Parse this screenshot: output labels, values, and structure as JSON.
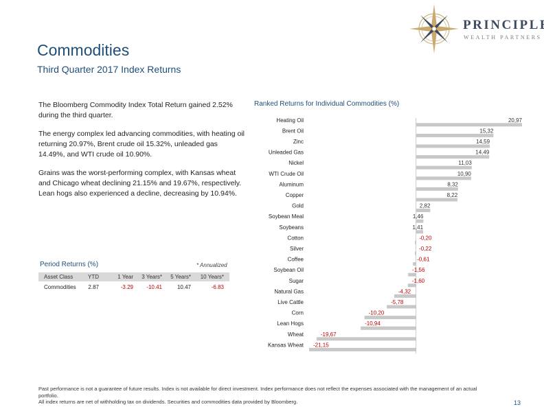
{
  "logo": {
    "name": "PRINCIPLE",
    "sub": "WEALTH PARTNERS"
  },
  "header": {
    "title": "Commodities",
    "subtitle": "Third Quarter 2017 Index Returns"
  },
  "commentary": {
    "p1": "The Bloomberg Commodity Index Total Return gained 2.52% during the third quarter.",
    "p2": "The energy complex led advancing commodities, with heating oil returning 20.97%, Brent crude oil 15.32%, unleaded gas 14.49%, and WTI crude oil 10.90%.",
    "p3": "Grains was the worst-performing complex, with Kansas wheat and Chicago wheat declining 21.15% and 19.67%, respectively. Lean hogs also experienced a decline, decreasing by 10.94%."
  },
  "period_returns": {
    "title": "Period Returns (%)",
    "note": "* Annualized",
    "headers": [
      "Asset Class",
      "YTD",
      "1 Year",
      "3 Years*",
      "5 Years*",
      "10 Years*"
    ],
    "row": {
      "label": "Commodities",
      "values": [
        "2.87",
        "-3.29",
        "-10.41",
        "10.47",
        "-6.83"
      ]
    },
    "negative_color": "#c00000"
  },
  "chart_data": {
    "type": "bar",
    "orientation": "horizontal",
    "title": "Ranked Returns for Individual Commodities (%)",
    "xlabel": "",
    "ylabel": "",
    "categories": [
      "Heating Oil",
      "Brent Oil",
      "Zinc",
      "Unleaded Gas",
      "Nickel",
      "WTI Crude Oil",
      "Aluminum",
      "Copper",
      "Gold",
      "Soybean Meal",
      "Soybeans",
      "Cotton",
      "Silver",
      "Coffee",
      "Soybean Oil",
      "Sugar",
      "Natural Gas",
      "Live Cattle",
      "Corn",
      "Lean Hogs",
      "Wheat",
      "Kansas Wheat"
    ],
    "values": [
      20.97,
      15.32,
      14.59,
      14.49,
      11.03,
      10.9,
      8.32,
      8.22,
      2.82,
      1.46,
      1.41,
      -0.2,
      -0.22,
      -0.61,
      -1.56,
      -1.6,
      -4.32,
      -5.78,
      -10.2,
      -10.94,
      -19.67,
      -21.15
    ],
    "data_labels": [
      "20,97",
      "15,32",
      "14,59",
      "14,49",
      "11,03",
      "10,90",
      "8,32",
      "8,22",
      "2,82",
      "1,46",
      "1,41",
      "-0,20",
      "-0,22",
      "-0,61",
      "-1,56",
      "-1,60",
      "-4,32",
      "-5,78",
      "-10,20",
      "-10,94",
      "-19,67",
      "-21,15"
    ],
    "xlim": [
      -21.15,
      20.97
    ],
    "grid": false,
    "legend": "none",
    "bar_color": "#c8c8c8",
    "negative_label_color": "#c00000"
  },
  "footer": {
    "line1": "Past performance is not a guarantee of future results. Index is not available for direct investment. Index performance does not reflect the expenses associated with the management of an actual portfolio.",
    "line2": "All index returns are net of withholding tax on dividends. Securities and commodities data provided by Bloomberg."
  },
  "page_number": "13",
  "colors": {
    "accent": "#1f4e79",
    "logo_gold": "#c9a96e",
    "logo_navy": "#3d4a5e"
  }
}
